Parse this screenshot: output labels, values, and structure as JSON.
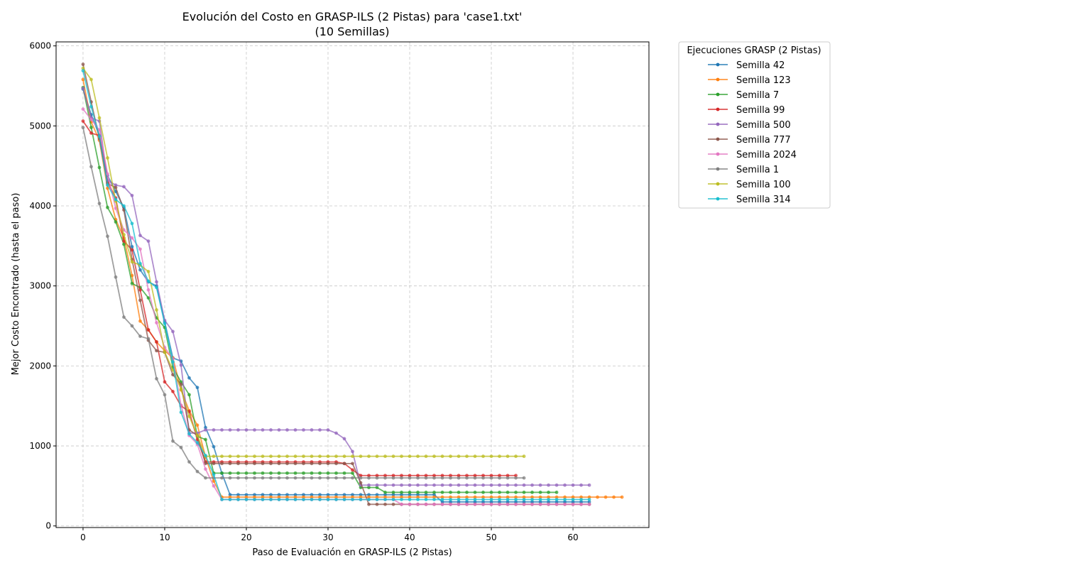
{
  "chart_data": {
    "type": "line",
    "title": "Evolución del Costo en GRASP-ILS (2 Pistas) para 'case1.txt'",
    "subtitle": "(10 Semillas)",
    "xlabel": "Paso de Evaluación en GRASP-ILS (2 Pistas)",
    "ylabel": "Mejor Costo Encontrado (hasta el paso)",
    "xlim": [
      -3.3,
      69.3
    ],
    "ylim": [
      -20,
      6050
    ],
    "xticks": [
      0,
      10,
      20,
      30,
      40,
      50,
      60
    ],
    "yticks": [
      0,
      1000,
      2000,
      3000,
      4000,
      5000,
      6000
    ],
    "grid": true,
    "legend": {
      "title": "Ejecuciones GRASP (2 Pistas)",
      "placement": "outside-right-top"
    },
    "series": [
      {
        "name": "Semilla 42",
        "color": "#1f77b4",
        "y": [
          5460,
          5140,
          4880,
          4380,
          4180,
          3980,
          3490,
          3200,
          3050,
          3000,
          2550,
          2100,
          2060,
          1850,
          1730,
          1230,
          990,
          660,
          390,
          390,
          390,
          390,
          390,
          390,
          390,
          390,
          390,
          390,
          390,
          390,
          390,
          390,
          390,
          390,
          390,
          390,
          390,
          390,
          390,
          390,
          390,
          390,
          390,
          390,
          300,
          300,
          300,
          300,
          300,
          300,
          300,
          300,
          300,
          300,
          300,
          300,
          300,
          300,
          300,
          300,
          300,
          300,
          300
        ]
      },
      {
        "name": "Semilla 123",
        "color": "#ff7f0e",
        "y": [
          5580,
          5050,
          4820,
          4220,
          3830,
          3600,
          3130,
          2560,
          2450,
          2300,
          2190,
          2100,
          1700,
          1440,
          1260,
          860,
          560,
          360,
          360,
          360,
          360,
          360,
          360,
          360,
          360,
          360,
          360,
          360,
          360,
          360,
          360,
          360,
          360,
          360,
          360,
          360,
          360,
          360,
          360,
          360,
          360,
          360,
          360,
          360,
          360,
          360,
          360,
          360,
          360,
          360,
          360,
          360,
          360,
          360,
          360,
          360,
          360,
          360,
          360,
          360,
          360,
          360,
          360,
          360,
          360,
          360,
          360
        ]
      },
      {
        "name": "Semilla 7",
        "color": "#2ca02c",
        "y": [
          5480,
          4980,
          4480,
          3980,
          3800,
          3520,
          3030,
          2980,
          2850,
          2600,
          2480,
          1980,
          1800,
          1640,
          1120,
          1080,
          660,
          660,
          660,
          660,
          660,
          660,
          660,
          660,
          660,
          660,
          660,
          660,
          660,
          660,
          660,
          660,
          660,
          660,
          480,
          480,
          480,
          420,
          420,
          420,
          420,
          420,
          420,
          420,
          420,
          420,
          420,
          420,
          420,
          420,
          420,
          420,
          420,
          420,
          420,
          420,
          420,
          420,
          420
        ]
      },
      {
        "name": "Semilla 99",
        "color": "#d62728",
        "y": [
          5060,
          4910,
          4880,
          4300,
          4100,
          3560,
          3450,
          2950,
          2450,
          2300,
          1800,
          1680,
          1500,
          1430,
          1080,
          800,
          800,
          800,
          800,
          800,
          800,
          800,
          800,
          800,
          800,
          800,
          800,
          800,
          800,
          800,
          800,
          800,
          780,
          700,
          630,
          630,
          630,
          630,
          630,
          630,
          630,
          630,
          630,
          630,
          630,
          630,
          630,
          630,
          630,
          630,
          630,
          630,
          630,
          630
        ]
      },
      {
        "name": "Semilla 500",
        "color": "#9467bd",
        "y": [
          5470,
          5100,
          5060,
          4320,
          4260,
          4240,
          4130,
          3630,
          3560,
          3050,
          2570,
          2430,
          2010,
          1160,
          1160,
          1200,
          1200,
          1200,
          1200,
          1200,
          1200,
          1200,
          1200,
          1200,
          1200,
          1200,
          1200,
          1200,
          1200,
          1200,
          1200,
          1160,
          1090,
          930,
          510,
          510,
          510,
          510,
          510,
          510,
          510,
          510,
          510,
          510,
          510,
          510,
          510,
          510,
          510,
          510,
          510,
          510,
          510,
          510,
          510,
          510,
          510,
          510,
          510,
          510,
          510,
          510,
          510
        ]
      },
      {
        "name": "Semilla 777",
        "color": "#8c564b",
        "y": [
          5770,
          5300,
          4840,
          4280,
          4230,
          3950,
          3330,
          2820,
          2320,
          2190,
          2170,
          1890,
          1770,
          1200,
          1130,
          780,
          780,
          780,
          780,
          780,
          780,
          780,
          780,
          780,
          780,
          780,
          780,
          780,
          780,
          780,
          780,
          780,
          780,
          780,
          540,
          270,
          270,
          270,
          270,
          270,
          270,
          270,
          270,
          270,
          270,
          270,
          270,
          270,
          270,
          270,
          270,
          270,
          270,
          270,
          270,
          270,
          270,
          270,
          270,
          270,
          270,
          270,
          270
        ]
      },
      {
        "name": "Semilla 2024",
        "color": "#e377c2",
        "y": [
          5210,
          5080,
          4950,
          4400,
          3970,
          3700,
          3600,
          3460,
          2950,
          2540,
          2230,
          2090,
          1510,
          1130,
          1020,
          710,
          500,
          330,
          330,
          330,
          330,
          330,
          330,
          330,
          330,
          330,
          330,
          330,
          330,
          330,
          330,
          330,
          330,
          330,
          330,
          330,
          330,
          330,
          330,
          270,
          270,
          270,
          270,
          270,
          270,
          270,
          270,
          270,
          270,
          270,
          270,
          270,
          270,
          270,
          270,
          270,
          270,
          270,
          270,
          270,
          270,
          270,
          270
        ]
      },
      {
        "name": "Semilla 1",
        "color": "#7f7f7f",
        "y": [
          4980,
          4490,
          4030,
          3620,
          3110,
          2610,
          2500,
          2370,
          2340,
          1840,
          1640,
          1060,
          980,
          800,
          680,
          600,
          600,
          600,
          600,
          600,
          600,
          600,
          600,
          600,
          600,
          600,
          600,
          600,
          600,
          600,
          600,
          600,
          600,
          600,
          600,
          600,
          600,
          600,
          600,
          600,
          600,
          600,
          600,
          600,
          600,
          600,
          600,
          600,
          600,
          600,
          600,
          600,
          600,
          600,
          600
        ]
      },
      {
        "name": "Semilla 100",
        "color": "#bcbd22",
        "y": [
          5720,
          5580,
          5100,
          4600,
          4060,
          3640,
          3300,
          3260,
          3180,
          2700,
          2170,
          1950,
          1710,
          1370,
          1130,
          870,
          870,
          870,
          870,
          870,
          870,
          870,
          870,
          870,
          870,
          870,
          870,
          870,
          870,
          870,
          870,
          870,
          870,
          870,
          870,
          870,
          870,
          870,
          870,
          870,
          870,
          870,
          870,
          870,
          870,
          870,
          870,
          870,
          870,
          870,
          870,
          870,
          870,
          870,
          870
        ]
      },
      {
        "name": "Semilla 314",
        "color": "#17becf",
        "y": [
          5690,
          5240,
          4870,
          4260,
          4080,
          4000,
          3780,
          3280,
          3060,
          2980,
          2530,
          2050,
          1420,
          1150,
          1040,
          880,
          640,
          330,
          330,
          330,
          330,
          330,
          330,
          330,
          330,
          330,
          330,
          330,
          330,
          330,
          330,
          330,
          330,
          330,
          330,
          330,
          330,
          330,
          330,
          330,
          330,
          330,
          330,
          330,
          330,
          330,
          330,
          330,
          330,
          330,
          330,
          330,
          330,
          330,
          330,
          330,
          330,
          330,
          330,
          330,
          330,
          330,
          330
        ]
      }
    ]
  }
}
